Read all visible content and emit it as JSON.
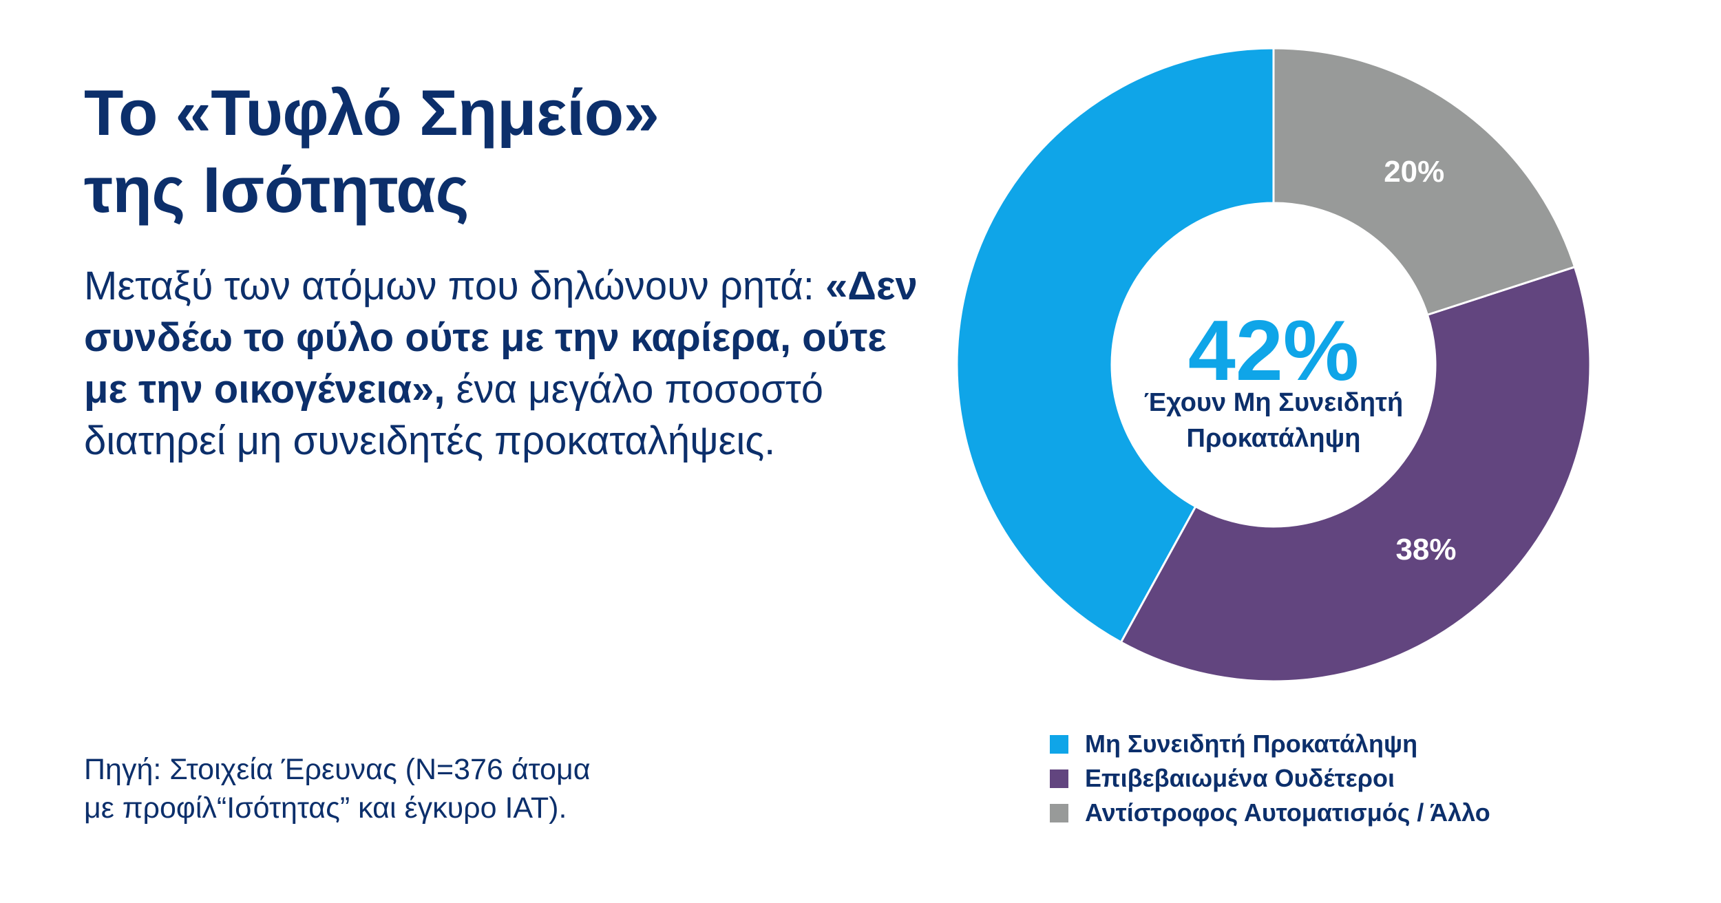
{
  "header": {
    "title_line1": "Το «Τυφλό Σημείο»",
    "title_line2": "της Ισότητας"
  },
  "description": {
    "part1": "Μεταξύ των ατόμων που δηλώνουν ρητά: ",
    "bold": "«Δεν συνδέω το φύλο ούτε με την καρίερα, ούτε με την οικογένεια»,",
    "part2": " ένα μεγάλο ποσοστό διατηρεί μη συνειδητές προκαταλήψεις."
  },
  "source": {
    "line1": "Πηγή: Στοιχεία Έρευνας (Ν=376 άτομα",
    "line2": "με προφίλ“Ισότητας” και έγκυρο ΙΑΤ)."
  },
  "chart_data": {
    "type": "pie",
    "subtype": "donut",
    "categories": [
      "Μη Συνειδητή Προκατάληψη",
      "Επιβεβαιωμένα Ουδέτεροι",
      "Αντίστροφος Αυτοματισμός / Άλλο"
    ],
    "values": [
      42,
      38,
      20
    ],
    "labels": [
      "42%",
      "38%",
      "20%"
    ],
    "colors": [
      "#0fa5e8",
      "#62457f",
      "#989a99"
    ],
    "center_value": "42%",
    "center_text_line1": "Έχουν Μη Συνειδητή",
    "center_text_line2": "Προκατάληψη",
    "legend_position": "bottom",
    "start": "12 o'clock, counterclockwise from first slice",
    "colors_text": {
      "center_value": "#0fa5e8",
      "center_text": "#0c2f6b",
      "slice_label": "#ffffff"
    }
  }
}
